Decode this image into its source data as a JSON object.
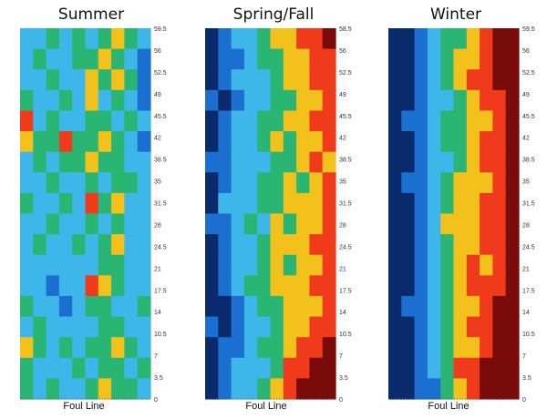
{
  "chart_data": [
    {
      "type": "heatmap",
      "title": "Summer",
      "xlabel": "Foul Line",
      "ylabel": "",
      "yticks": [
        "59.5",
        "56",
        "52.5",
        "49",
        "45.5",
        "42",
        "38.5",
        "35",
        "31.5",
        "28",
        "24.5",
        "21",
        "17.5",
        "14",
        "10.5",
        "7",
        "3.5",
        "0"
      ],
      "ylim": [
        0,
        59.5
      ],
      "palette": [
        "#0b2a6b",
        "#1a6fd0",
        "#3fb6ea",
        "#2bb573",
        "#f3c11b",
        "#ef3a1c",
        "#7a0b0b"
      ],
      "level_scale": "0 = coolest (navy) ... 6 = hottest (dark red)",
      "cols": 10,
      "grid": [
        [
          2,
          2,
          3,
          2,
          3,
          2,
          3,
          4,
          3,
          2
        ],
        [
          2,
          3,
          2,
          2,
          3,
          3,
          4,
          3,
          2,
          1
        ],
        [
          2,
          2,
          3,
          2,
          2,
          4,
          3,
          4,
          3,
          1
        ],
        [
          3,
          2,
          2,
          3,
          2,
          4,
          2,
          3,
          2,
          1
        ],
        [
          5,
          2,
          3,
          2,
          2,
          3,
          3,
          2,
          3,
          2
        ],
        [
          4,
          3,
          3,
          5,
          3,
          3,
          4,
          3,
          2,
          1
        ],
        [
          2,
          3,
          2,
          3,
          3,
          4,
          3,
          3,
          2,
          2
        ],
        [
          2,
          2,
          3,
          2,
          2,
          3,
          2,
          3,
          3,
          2
        ],
        [
          3,
          2,
          2,
          3,
          2,
          5,
          3,
          4,
          2,
          2
        ],
        [
          2,
          2,
          3,
          2,
          2,
          3,
          2,
          3,
          2,
          2
        ],
        [
          2,
          3,
          2,
          2,
          3,
          2,
          3,
          4,
          2,
          2
        ],
        [
          2,
          2,
          2,
          2,
          2,
          2,
          3,
          3,
          2,
          2
        ],
        [
          2,
          2,
          1,
          2,
          2,
          5,
          4,
          3,
          2,
          2
        ],
        [
          3,
          2,
          2,
          1,
          2,
          3,
          3,
          2,
          2,
          3
        ],
        [
          2,
          3,
          2,
          2,
          2,
          2,
          3,
          3,
          2,
          2
        ],
        [
          4,
          3,
          2,
          3,
          2,
          3,
          3,
          4,
          3,
          2
        ],
        [
          3,
          2,
          2,
          2,
          3,
          2,
          3,
          3,
          2,
          3
        ],
        [
          3,
          2,
          3,
          2,
          2,
          3,
          4,
          3,
          3,
          2
        ]
      ]
    },
    {
      "type": "heatmap",
      "title": "Spring/Fall",
      "xlabel": "Foul Line",
      "ylabel": "",
      "yticks": [
        "58.5",
        "56",
        "52.5",
        "49",
        "45.5",
        "42",
        "38.5",
        "35",
        "31.5",
        "28",
        "24.5",
        "21",
        "17.5",
        "14",
        "10.5",
        "7",
        "3.5",
        "0"
      ],
      "ylim": [
        0,
        58.5
      ],
      "palette": [
        "#0b2a6b",
        "#1a6fd0",
        "#3fb6ea",
        "#2bb573",
        "#f3c11b",
        "#ef3a1c",
        "#7a0b0b"
      ],
      "level_scale": "0 = coolest (navy) ... 6 = hottest (dark red)",
      "cols": 10,
      "grid": [
        [
          0,
          1,
          2,
          2,
          3,
          4,
          4,
          5,
          5,
          6
        ],
        [
          0,
          1,
          1,
          2,
          3,
          3,
          4,
          4,
          5,
          5
        ],
        [
          0,
          1,
          2,
          2,
          2,
          3,
          4,
          4,
          5,
          5
        ],
        [
          1,
          0,
          1,
          2,
          2,
          3,
          3,
          4,
          4,
          5
        ],
        [
          0,
          1,
          2,
          2,
          3,
          3,
          4,
          4,
          5,
          5
        ],
        [
          0,
          1,
          2,
          2,
          3,
          4,
          3,
          4,
          4,
          5
        ],
        [
          1,
          1,
          2,
          2,
          2,
          3,
          3,
          4,
          5,
          4
        ],
        [
          0,
          1,
          2,
          2,
          3,
          3,
          4,
          3,
          4,
          5
        ],
        [
          0,
          2,
          2,
          2,
          3,
          3,
          4,
          4,
          4,
          5
        ],
        [
          1,
          1,
          2,
          3,
          2,
          4,
          3,
          4,
          4,
          5
        ],
        [
          0,
          1,
          2,
          2,
          3,
          4,
          4,
          4,
          5,
          5
        ],
        [
          0,
          1,
          2,
          2,
          3,
          4,
          3,
          4,
          4,
          5
        ],
        [
          0,
          1,
          2,
          3,
          3,
          4,
          4,
          4,
          5,
          5
        ],
        [
          0,
          0,
          1,
          2,
          3,
          3,
          4,
          4,
          4,
          5
        ],
        [
          1,
          0,
          1,
          2,
          2,
          3,
          4,
          4,
          5,
          5
        ],
        [
          0,
          1,
          1,
          2,
          3,
          3,
          4,
          5,
          5,
          6
        ],
        [
          0,
          1,
          2,
          2,
          2,
          3,
          5,
          5,
          6,
          6
        ],
        [
          0,
          1,
          2,
          2,
          3,
          4,
          5,
          6,
          6,
          6
        ]
      ]
    },
    {
      "type": "heatmap",
      "title": "Winter",
      "xlabel": "Foul Line",
      "ylabel": "",
      "yticks": [
        "59.5",
        "56",
        "52.5",
        "49",
        "45.5",
        "42",
        "38.5",
        "35",
        "31.5",
        "28",
        "24.5",
        "21",
        "17.5",
        "14",
        "10.5",
        "7",
        "3.5",
        "0"
      ],
      "ylim": [
        0,
        59.5
      ],
      "palette": [
        "#0b2a6b",
        "#1a6fd0",
        "#3fb6ea",
        "#2bb573",
        "#f3c11b",
        "#ef3a1c",
        "#7a0b0b"
      ],
      "level_scale": "0 = coolest (navy) ... 6 = hottest (dark red)",
      "cols": 10,
      "grid": [
        [
          0,
          0,
          1,
          2,
          3,
          3,
          4,
          5,
          6,
          6
        ],
        [
          0,
          0,
          1,
          2,
          3,
          4,
          4,
          5,
          6,
          6
        ],
        [
          0,
          0,
          1,
          2,
          3,
          4,
          5,
          5,
          6,
          6
        ],
        [
          0,
          0,
          1,
          2,
          2,
          3,
          4,
          5,
          5,
          6
        ],
        [
          0,
          1,
          1,
          2,
          3,
          3,
          4,
          4,
          5,
          6
        ],
        [
          0,
          0,
          1,
          2,
          3,
          3,
          4,
          5,
          5,
          6
        ],
        [
          0,
          0,
          1,
          2,
          2,
          3,
          4,
          5,
          5,
          6
        ],
        [
          0,
          1,
          1,
          2,
          3,
          4,
          4,
          4,
          5,
          6
        ],
        [
          0,
          0,
          1,
          2,
          3,
          4,
          4,
          5,
          5,
          6
        ],
        [
          0,
          0,
          1,
          2,
          4,
          4,
          4,
          5,
          5,
          6
        ],
        [
          0,
          0,
          1,
          2,
          3,
          4,
          4,
          5,
          5,
          6
        ],
        [
          0,
          0,
          1,
          2,
          3,
          4,
          5,
          4,
          5,
          6
        ],
        [
          0,
          0,
          1,
          2,
          3,
          4,
          5,
          5,
          5,
          6
        ],
        [
          0,
          1,
          1,
          2,
          3,
          4,
          4,
          5,
          6,
          6
        ],
        [
          0,
          0,
          1,
          2,
          3,
          4,
          5,
          5,
          6,
          6
        ],
        [
          0,
          0,
          1,
          2,
          3,
          4,
          4,
          5,
          6,
          6
        ],
        [
          0,
          0,
          1,
          2,
          3,
          5,
          5,
          6,
          6,
          6
        ],
        [
          0,
          0,
          1,
          1,
          3,
          4,
          5,
          6,
          6,
          6
        ]
      ]
    }
  ]
}
